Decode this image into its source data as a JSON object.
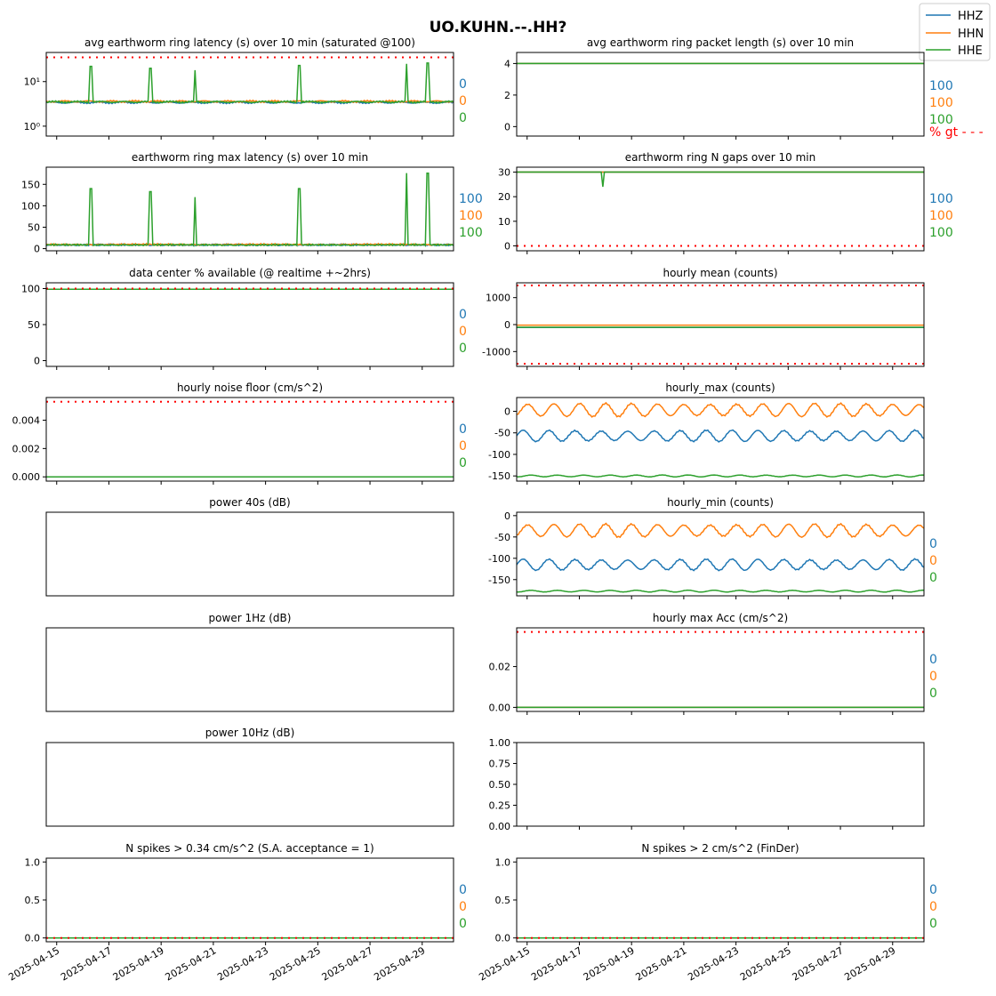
{
  "title": "UO.KUHN.--.HH?",
  "legend": [
    "HHZ",
    "HHN",
    "HHE"
  ],
  "colors": {
    "HHZ": "#1f77b4",
    "HHN": "#ff7f0e",
    "HHE": "#2ca02c",
    "threshold": "#ff0000"
  },
  "x_ticks": [
    "2025-04-15",
    "2025-04-17",
    "2025-04-19",
    "2025-04-21",
    "2025-04-23",
    "2025-04-25",
    "2025-04-27",
    "2025-04-29"
  ],
  "chart_data": [
    {
      "title": "avg earthworm ring latency (s)   over 10 min (saturated @100)",
      "type": "line",
      "log": true,
      "ylim": [
        0.6,
        45
      ],
      "yticks": [
        1,
        10
      ],
      "ytick_labels": [
        "10⁰",
        "10¹"
      ],
      "threshold": [
        35
      ],
      "stats": [
        "0",
        "0",
        "0"
      ],
      "series": [
        {
          "name": "HHZ",
          "base": 3.4
        },
        {
          "name": "HHN",
          "base": 3.6
        },
        {
          "name": "HHE",
          "base": 3.5,
          "spikes": [
            [
              1.7,
              22
            ],
            [
              4.0,
              20
            ],
            [
              5.7,
              18
            ],
            [
              9.7,
              23
            ],
            [
              13.8,
              25
            ],
            [
              14.6,
              26
            ]
          ]
        }
      ]
    },
    {
      "title": "avg earthworm ring packet length (s)   over 10 min",
      "type": "line",
      "ylim": [
        -0.6,
        4.7
      ],
      "yticks": [
        0,
        2,
        4
      ],
      "stats": [
        "100",
        "100",
        "100"
      ],
      "pct_label": "% gt - - -",
      "series": [
        {
          "name": "HHZ",
          "base": 4.0
        },
        {
          "name": "HHN",
          "base": 4.0
        },
        {
          "name": "HHE",
          "base": 4.0
        }
      ]
    },
    {
      "title": "earthworm ring max latency (s)   over 10 min",
      "type": "line",
      "ylim": [
        -5,
        190
      ],
      "yticks": [
        0,
        50,
        100,
        150
      ],
      "stats": [
        "100",
        "100",
        "100"
      ],
      "series": [
        {
          "name": "HHZ",
          "base": 7
        },
        {
          "name": "HHN",
          "base": 8
        },
        {
          "name": "HHE",
          "base": 7,
          "spikes": [
            [
              1.7,
              140
            ],
            [
              4.0,
              133
            ],
            [
              5.7,
              120
            ],
            [
              9.7,
              140
            ],
            [
              13.8,
              176
            ],
            [
              14.6,
              176
            ]
          ]
        }
      ]
    },
    {
      "title": "earthworm ring N gaps   over 10 min",
      "type": "line",
      "ylim": [
        -2,
        32
      ],
      "yticks": [
        0,
        10,
        20,
        30
      ],
      "threshold": [
        0
      ],
      "stats": [
        "100",
        "100",
        "100"
      ],
      "series": [
        {
          "name": "HHZ",
          "base": 30
        },
        {
          "name": "HHN",
          "base": 30
        },
        {
          "name": "HHE",
          "base": 30,
          "dip": [
            3.3,
            24
          ]
        }
      ]
    },
    {
      "title": "data center % available (@ realtime +~2hrs)",
      "type": "line",
      "ylim": [
        -8,
        108
      ],
      "yticks": [
        0,
        50,
        100
      ],
      "threshold": [
        100
      ],
      "stats": [
        "0",
        "0",
        "0"
      ],
      "series": [
        {
          "name": "HHZ",
          "base": 99
        },
        {
          "name": "HHN",
          "base": 99
        },
        {
          "name": "HHE",
          "base": 99
        }
      ]
    },
    {
      "title": "hourly mean (counts)",
      "type": "line",
      "ylim": [
        -1550,
        1550
      ],
      "yticks": [
        -1000,
        0,
        1000
      ],
      "threshold": [
        1450,
        -1450
      ],
      "stats": [],
      "series": [
        {
          "name": "HHZ",
          "base": -110
        },
        {
          "name": "HHN",
          "base": -20
        },
        {
          "name": "HHE",
          "base": -100
        }
      ]
    },
    {
      "title": "hourly noise floor (cm/s^2)",
      "type": "line",
      "ylim": [
        -0.0003,
        0.0056
      ],
      "yticks": [
        0,
        0.002,
        0.004
      ],
      "ytick_labels": [
        "0.000",
        "0.002",
        "0.004"
      ],
      "threshold": [
        0.0053
      ],
      "stats": [
        "0",
        "0",
        "0"
      ],
      "series": [
        {
          "name": "HHZ",
          "base": 0
        },
        {
          "name": "HHN",
          "base": 0
        },
        {
          "name": "HHE",
          "base": 0
        }
      ]
    },
    {
      "title": "hourly_max (counts)",
      "type": "line",
      "ylim": [
        -162,
        32
      ],
      "yticks": [
        -150,
        -100,
        -50,
        0
      ],
      "stats": [],
      "series": [
        {
          "name": "HHZ",
          "base": -57,
          "amp": 12
        },
        {
          "name": "HHN",
          "base": 3,
          "amp": 14
        },
        {
          "name": "HHE",
          "base": -150,
          "amp": 2
        }
      ]
    },
    {
      "title": "power 40s (dB)",
      "type": "empty",
      "stats": []
    },
    {
      "title": "hourly_min (counts)",
      "type": "line",
      "ylim": [
        -188,
        8
      ],
      "yticks": [
        -150,
        -100,
        -50,
        0
      ],
      "stats": [
        "0",
        "0",
        "0"
      ],
      "series": [
        {
          "name": "HHZ",
          "base": -115,
          "amp": 12
        },
        {
          "name": "HHN",
          "base": -35,
          "amp": 14
        },
        {
          "name": "HHE",
          "base": -177,
          "amp": 2
        }
      ]
    },
    {
      "title": "power 1Hz (dB)",
      "type": "empty",
      "stats": []
    },
    {
      "title": "hourly max Acc (cm/s^2)",
      "type": "line",
      "ylim": [
        -0.002,
        0.039
      ],
      "yticks": [
        0,
        0.02
      ],
      "ytick_labels": [
        "0.00",
        "0.02"
      ],
      "threshold": [
        0.037
      ],
      "stats": [
        "0",
        "0",
        "0"
      ],
      "series": [
        {
          "name": "HHZ",
          "base": 0
        },
        {
          "name": "HHN",
          "base": 0
        },
        {
          "name": "HHE",
          "base": 0
        }
      ]
    },
    {
      "title": "power 10Hz (dB)",
      "type": "empty",
      "stats": []
    },
    {
      "title": "",
      "type": "blank",
      "ylim": [
        0,
        1
      ],
      "yticks": [
        0,
        0.25,
        0.5,
        0.75,
        1
      ],
      "ytick_labels": [
        "0.00",
        "0.25",
        "0.50",
        "0.75",
        "1.00"
      ],
      "stats": []
    },
    {
      "title": "N spikes > 0.34 cm/s^2 (S.A. acceptance = 1)",
      "type": "line",
      "ylim": [
        -0.05,
        1.05
      ],
      "yticks": [
        0,
        0.5,
        1
      ],
      "ytick_labels": [
        "0.0",
        "0.5",
        "1.0"
      ],
      "threshold": [
        0
      ],
      "stats": [
        "0",
        "0",
        "0"
      ],
      "series": [
        {
          "name": "HHZ",
          "base": 0
        },
        {
          "name": "HHN",
          "base": 0
        },
        {
          "name": "HHE",
          "base": 0
        }
      ]
    },
    {
      "title": "N spikes > 2 cm/s^2 (FinDer)",
      "type": "line",
      "ylim": [
        -0.05,
        1.05
      ],
      "yticks": [
        0,
        0.5,
        1
      ],
      "ytick_labels": [
        "0.0",
        "0.5",
        "1.0"
      ],
      "threshold": [
        0
      ],
      "stats": [
        "0",
        "0",
        "0"
      ],
      "series": [
        {
          "name": "HHZ",
          "base": 0
        },
        {
          "name": "HHN",
          "base": 0
        },
        {
          "name": "HHE",
          "base": 0
        }
      ]
    }
  ]
}
